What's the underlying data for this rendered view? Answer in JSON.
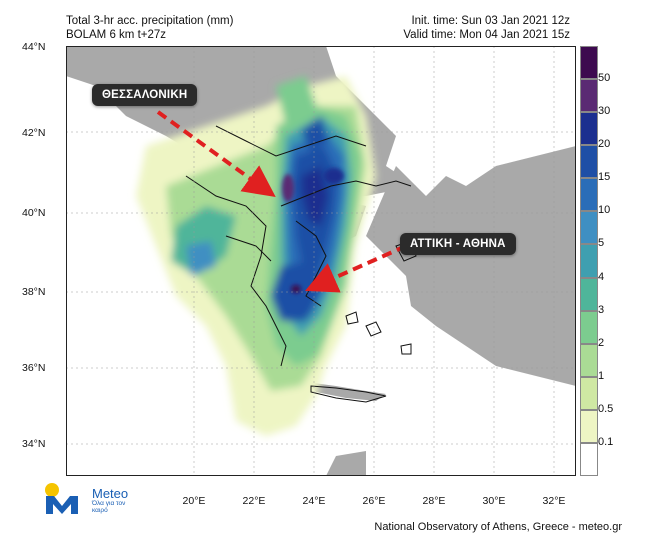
{
  "header": {
    "title_line1": "Total 3-hr acc. precipitation (mm)",
    "title_line2": "BOLAM 6 km t+27z",
    "init_time": "Init. time: Sun 03 Jan 2021 12z",
    "valid_time": "Valid time: Mon 04 Jan 2021 15z"
  },
  "axes": {
    "lat_labels": [
      "44°N",
      "42°N",
      "40°N",
      "38°N",
      "36°N",
      "34°N"
    ],
    "lon_labels": [
      "20°E",
      "22°E",
      "24°E",
      "26°E",
      "28°E",
      "30°E",
      "32°E"
    ]
  },
  "colorbar": {
    "labels": [
      "50",
      "30",
      "20",
      "15",
      "10",
      "5",
      "4",
      "3",
      "2",
      "1",
      "0.5",
      "0.1"
    ],
    "colors": [
      "#3d0a4f",
      "#5a2a73",
      "#1c2f8f",
      "#1f4fa6",
      "#2a6db8",
      "#3f8fc2",
      "#3f9fb0",
      "#4fb59a",
      "#7ccc8f",
      "#aadb95",
      "#cfe8a3",
      "#eef5c4",
      "#ffffff"
    ]
  },
  "callouts": {
    "thessaloniki": "ΘΕΣΣΑΛΟΝΙΚΗ",
    "attiki": "ΑΤΤΙΚΗ - ΑΘΗΝΑ"
  },
  "logo": {
    "name": "Meteo",
    "tagline": "Όλα για τον καιρό"
  },
  "credit": "National Observatory of Athens, Greece - meteo.gr"
}
